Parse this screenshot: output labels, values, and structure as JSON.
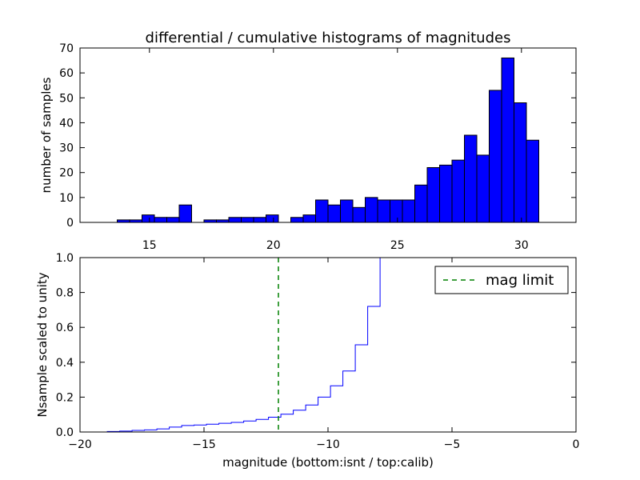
{
  "chart_data": [
    {
      "type": "bar",
      "title": "differential / cumulative histograms of magnitudes",
      "xlabel": "",
      "ylabel": "number of samples",
      "xlim": [
        12.2,
        32.2
      ],
      "ylim": [
        0,
        70
      ],
      "xticks": [
        "15",
        "20",
        "25",
        "30"
      ],
      "xtick_values": [
        15,
        20,
        25,
        30
      ],
      "yticks": [
        "0",
        "10",
        "20",
        "30",
        "40",
        "50",
        "60",
        "70"
      ],
      "ytick_values": [
        0,
        10,
        20,
        30,
        40,
        50,
        60,
        70
      ],
      "bin_width": 0.5,
      "bins_left": [
        13.7,
        14.2,
        14.7,
        15.2,
        15.7,
        16.2,
        16.7,
        17.2,
        17.7,
        18.2,
        18.7,
        19.2,
        19.7,
        20.2,
        20.7,
        21.2,
        21.7,
        22.2,
        22.7,
        23.2,
        23.7,
        24.2,
        24.7,
        25.2,
        25.7,
        26.2,
        26.7,
        27.2,
        27.7,
        28.2,
        28.7,
        29.2,
        29.7,
        30.2
      ],
      "values": [
        1,
        1,
        3,
        2,
        2,
        7,
        0,
        1,
        1,
        2,
        2,
        2,
        3,
        0,
        2,
        3,
        9,
        7,
        9,
        6,
        10,
        9,
        9,
        9,
        15,
        22,
        23,
        25,
        35,
        27,
        53,
        66,
        48,
        33
      ],
      "bar_color": "#0000ff",
      "xtick_labels_position": "bottom"
    },
    {
      "type": "line",
      "title": "",
      "xlabel": "magnitude (bottom:isnt / top:calib)",
      "ylabel": "Nsample scaled to unity",
      "xlim": [
        -20,
        0
      ],
      "ylim": [
        0,
        1
      ],
      "xticks": [
        "−20",
        "−15",
        "−10",
        "−5",
        "0"
      ],
      "xtick_values": [
        -20,
        -15,
        -10,
        -5,
        0
      ],
      "yticks": [
        "0.0",
        "0.2",
        "0.4",
        "0.6",
        "0.8",
        "1.0"
      ],
      "ytick_values": [
        0,
        0.2,
        0.4,
        0.6,
        0.8,
        1.0
      ],
      "series": [
        {
          "step": true,
          "color": "#0000ff",
          "x": [
            -20,
            -18.9,
            -18.4,
            -17.9,
            -17.4,
            -16.9,
            -16.4,
            -15.9,
            -15.4,
            -14.9,
            -14.4,
            -13.9,
            -13.4,
            -12.9,
            -12.4,
            -11.9,
            -11.4,
            -10.9,
            -10.4,
            -9.9,
            -9.4,
            -8.9,
            -8.4,
            -7.9
          ],
          "y": [
            0,
            0.003,
            0.005,
            0.009,
            0.012,
            0.018,
            0.028,
            0.037,
            0.04,
            0.045,
            0.05,
            0.055,
            0.063,
            0.072,
            0.085,
            0.102,
            0.125,
            0.155,
            0.2,
            0.265,
            0.35,
            0.5,
            0.72,
            1.0
          ]
        },
        {
          "name": "mag limit",
          "color": "#008000",
          "dashed": true,
          "vline_x": -12
        }
      ],
      "legend_placement": "top-right"
    }
  ]
}
